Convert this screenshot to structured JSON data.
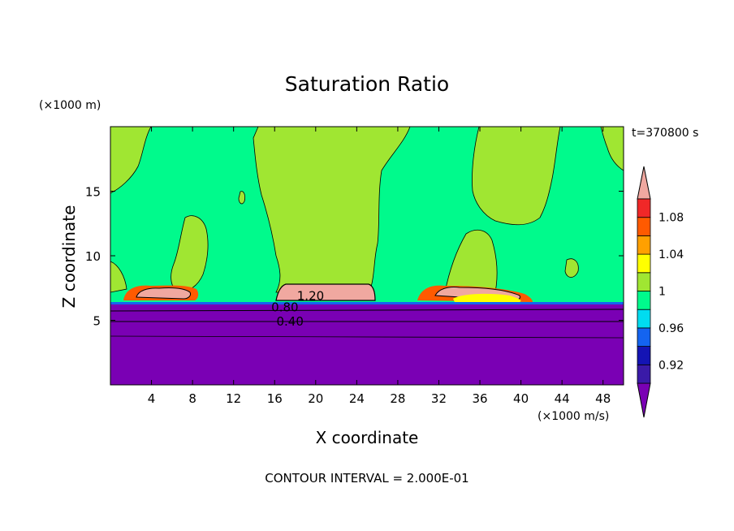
{
  "chart_data": {
    "type": "heatmap",
    "title": "Saturation Ratio",
    "xlabel": "X coordinate",
    "ylabel": "Z coordinate",
    "x_unit": "(×1000 m/s)",
    "y_unit": "(×1000 m)",
    "time_label": "t=370800 s",
    "footer": "CONTOUR INTERVAL = 2.000E-01",
    "xlim": [
      0,
      50
    ],
    "ylim": [
      0,
      20
    ],
    "x_ticks": [
      4,
      8,
      12,
      16,
      20,
      24,
      28,
      32,
      36,
      40,
      44,
      48
    ],
    "y_ticks": [
      5,
      10,
      15
    ],
    "colorbar": {
      "levels": [
        0.92,
        0.96,
        1,
        1.04,
        1.08
      ],
      "bands": [
        {
          "from": 0.9,
          "to": 0.92,
          "color": "#3a1aa8"
        },
        {
          "from": 0.92,
          "to": 0.94,
          "color": "#1414b4"
        },
        {
          "from": 0.94,
          "to": 0.96,
          "color": "#1464f0"
        },
        {
          "from": 0.96,
          "to": 0.98,
          "color": "#00dcf0"
        },
        {
          "from": 0.98,
          "to": 1.0,
          "color": "#00fa8c"
        },
        {
          "from": 1.0,
          "to": 1.02,
          "color": "#a0e632"
        },
        {
          "from": 1.02,
          "to": 1.04,
          "color": "#ffff00"
        },
        {
          "from": 1.04,
          "to": 1.06,
          "color": "#ffa000"
        },
        {
          "from": 1.06,
          "to": 1.08,
          "color": "#ff5a00"
        },
        {
          "from": 1.08,
          "to": 1.1,
          "color": "#f02828"
        }
      ],
      "under_color": "#7a00b4",
      "over_color": "#f0a8a0"
    },
    "contour_labels": [
      {
        "text": "1.20",
        "x": 19.5,
        "y": 6.9
      },
      {
        "text": "0.80",
        "x": 17.0,
        "y": 6.0
      },
      {
        "text": "0.40",
        "x": 17.5,
        "y": 4.9
      }
    ],
    "regions": {
      "dry_layer_top_z": 6.4,
      "contour_lines_z": [
        6.0,
        5.0,
        3.7
      ],
      "supersaturated_patches": [
        {
          "x0": 1.2,
          "x1": 8.6,
          "z0": 6.4,
          "z1": 7.6
        },
        {
          "x0": 16.0,
          "x1": 26.2,
          "z0": 6.4,
          "z1": 7.6
        },
        {
          "x0": 29.6,
          "x1": 41.6,
          "z0": 6.4,
          "z1": 7.8
        }
      ]
    }
  }
}
